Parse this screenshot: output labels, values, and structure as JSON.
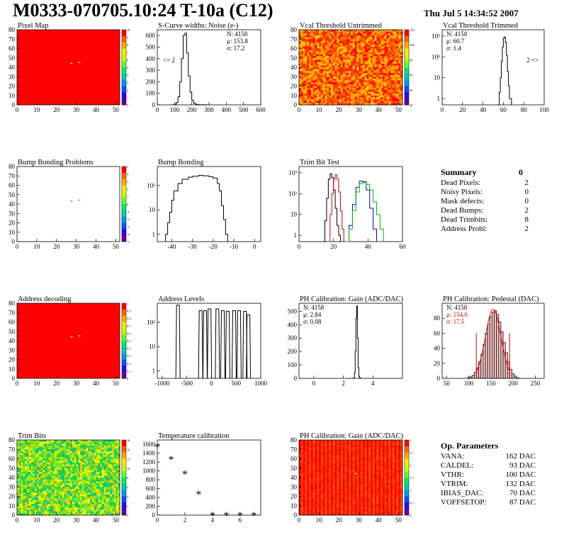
{
  "header": {
    "title": "M0333-070705.10:24 T-10a (C12)",
    "date": "Thu Jul  5 14:34:52 2007"
  },
  "panels": {
    "pixel_map": {
      "title": "Pixel Map",
      "chart_data": {
        "type": "heatmap",
        "xlim": [
          0,
          52
        ],
        "ylim": [
          0,
          80
        ],
        "x_ticks": [
          0,
          10,
          20,
          30,
          40,
          50
        ],
        "y_ticks": [
          0,
          10,
          20,
          30,
          40,
          50,
          60,
          70,
          80
        ],
        "fill": "uniform",
        "fill_value": 10,
        "z_ticks": [
          0,
          1,
          2,
          3,
          4,
          5,
          6,
          7,
          8,
          9,
          10
        ]
      }
    },
    "scurve": {
      "title": "S-Curve widths: Noise (e-)",
      "stats": {
        "n": "N: 4158",
        "mean": "μ: 153.8",
        "sigma": "σ: 17.2"
      },
      "underflow_label": "<= 2",
      "chart_data": {
        "type": "line",
        "xlim": [
          0,
          600
        ],
        "ylim": [
          0,
          650
        ],
        "x_ticks": [
          0,
          100,
          200,
          300,
          400,
          500,
          600
        ],
        "y_ticks": [
          0,
          100,
          200,
          300,
          400,
          500,
          600
        ],
        "x": [
          80,
          100,
          110,
          120,
          130,
          140,
          150,
          160,
          170,
          180,
          190,
          200,
          210,
          220,
          230,
          240,
          260,
          280,
          300
        ],
        "y": [
          0,
          5,
          20,
          70,
          200,
          400,
          600,
          620,
          450,
          250,
          110,
          40,
          15,
          6,
          2,
          1,
          1,
          0,
          0
        ]
      }
    },
    "vcal_untrimmed": {
      "title": "Vcal Threshold Untrimmed",
      "chart_data": {
        "type": "heatmap",
        "xlim": [
          0,
          52
        ],
        "ylim": [
          0,
          80
        ],
        "x_ticks": [
          0,
          10,
          20,
          30,
          40,
          50
        ],
        "y_ticks": [
          0,
          10,
          20,
          30,
          40,
          50,
          60,
          70,
          80
        ],
        "fill": "random-orange",
        "z_ticks": [
          20,
          40,
          60,
          80,
          100,
          120
        ]
      }
    },
    "vcal_trimmed": {
      "title": "Vcal Threshold Trimmed",
      "stats": {
        "n": "N: 4158",
        "mean": "μ: 60.7",
        "sigma": "σ: 1.4"
      },
      "overflow_label": "2 =>",
      "chart_data": {
        "type": "line",
        "log_y": true,
        "xlim": [
          0,
          100
        ],
        "ylim": [
          0.5,
          2000
        ],
        "x_ticks": [
          0,
          20,
          40,
          60,
          80,
          100
        ],
        "y_tick_labels": [
          "1",
          "10",
          "10²",
          "10³"
        ],
        "x": [
          54,
          56,
          57,
          58,
          59,
          60,
          61,
          62,
          63,
          64,
          65,
          66,
          68
        ],
        "y": [
          0.5,
          2,
          10,
          60,
          300,
          800,
          900,
          500,
          120,
          20,
          4,
          1,
          0.5
        ]
      }
    },
    "bump_problems": {
      "title": "Bump Bonding Problems",
      "chart_data": {
        "type": "heatmap",
        "xlim": [
          0,
          52
        ],
        "ylim": [
          0,
          80
        ],
        "x_ticks": [
          0,
          10,
          20,
          30,
          40,
          50
        ],
        "y_ticks": [
          0,
          10,
          20,
          30,
          40,
          50,
          60,
          70,
          80
        ],
        "fill": "empty",
        "z_ticks": [
          -5,
          -4,
          -3,
          -2,
          -1,
          0,
          1,
          2,
          3,
          4,
          5
        ]
      }
    },
    "bump_bonding": {
      "title": "Bump Bonding",
      "chart_data": {
        "type": "line",
        "log_y": true,
        "xlim": [
          -47,
          3
        ],
        "ylim": [
          0.5,
          600
        ],
        "x_ticks": [
          -40,
          -30,
          -20,
          -10,
          0
        ],
        "y_tick_labels": [
          "1",
          "10",
          "10²"
        ],
        "x": [
          -43,
          -42,
          -41,
          -40,
          -39,
          -37,
          -35,
          -32,
          -30,
          -27,
          -25,
          -22,
          -20,
          -18,
          -17,
          -16,
          -15,
          -14,
          -13
        ],
        "y": [
          1,
          3,
          8,
          25,
          60,
          120,
          180,
          220,
          240,
          260,
          250,
          230,
          200,
          120,
          60,
          15,
          4,
          1,
          0.5
        ]
      }
    },
    "trim_bit_test": {
      "title": "Trim Bit Test",
      "chart_data": {
        "type": "line",
        "log_y": true,
        "xlim": [
          0,
          60
        ],
        "ylim": [
          0.5,
          2000
        ],
        "x_ticks": [
          0,
          20,
          40,
          60
        ],
        "y_tick_labels": [
          "1",
          "10",
          "10²",
          "10³"
        ],
        "series": [
          {
            "color": "#000000",
            "x": [
              14,
              15,
              16,
              17,
              18,
              19,
              20,
              21,
              22,
              23,
              24
            ],
            "y": [
              0.5,
              5,
              60,
              500,
              900,
              600,
              150,
              20,
              3,
              1,
              0.5
            ]
          },
          {
            "color": "#cc0000",
            "x": [
              17,
              18,
              19,
              20,
              21,
              22,
              23,
              24,
              25,
              26
            ],
            "y": [
              0.5,
              10,
              100,
              500,
              800,
              500,
              120,
              15,
              2,
              0.5
            ]
          },
          {
            "color": "#0000cc",
            "x": [
              27,
              29,
              31,
              33,
              35,
              37,
              39,
              41,
              43,
              45
            ],
            "y": [
              0.5,
              3,
              30,
              200,
              400,
              380,
              150,
              20,
              2,
              0.5
            ]
          },
          {
            "color": "#00bb00",
            "x": [
              27,
              29,
              31,
              33,
              35,
              37,
              39,
              41,
              43,
              45,
              47,
              49
            ],
            "y": [
              0.5,
              2,
              15,
              120,
              300,
              350,
              280,
              150,
              40,
              10,
              2,
              0.5
            ]
          }
        ]
      }
    },
    "address_decoding": {
      "title": "Address decoding",
      "chart_data": {
        "type": "heatmap",
        "xlim": [
          0,
          52
        ],
        "ylim": [
          0,
          80
        ],
        "x_ticks": [
          0,
          10,
          20,
          30,
          40,
          50
        ],
        "y_ticks": [
          0,
          10,
          20,
          30,
          40,
          50,
          60,
          70,
          80
        ],
        "fill": "uniform",
        "fill_value": 1,
        "z_ticks": [
          0,
          0.1,
          0.2,
          0.3,
          0.4,
          0.5,
          0.6,
          0.7,
          0.8,
          0.9,
          1
        ]
      }
    },
    "address_levels": {
      "title": "Address Levels",
      "chart_data": {
        "type": "line",
        "log_y": true,
        "xlim": [
          -1100,
          1000
        ],
        "ylim": [
          0.5,
          600
        ],
        "x_ticks": [
          -1000,
          -500,
          0,
          500,
          1000
        ],
        "y_tick_labels": [
          "1",
          "10",
          "10²"
        ],
        "peaks": [
          -680,
          -220,
          -130,
          -40,
          120,
          230,
          330,
          460,
          560,
          680,
          750
        ],
        "peak_heights": [
          500,
          300,
          300,
          350,
          350,
          300,
          280,
          300,
          300,
          280,
          200
        ]
      }
    },
    "ph_gain": {
      "title": "PH Calibration: Gain (ADC/DAC)",
      "stats": {
        "n": "N: 4158",
        "mean": "μ: 2.84",
        "sigma": "σ: 0.08"
      },
      "chart_data": {
        "type": "line",
        "xlim": [
          -1,
          6
        ],
        "ylim": [
          0,
          560
        ],
        "x_ticks": [
          0,
          2,
          4
        ],
        "y_ticks": [
          0,
          100,
          200,
          300,
          400,
          500
        ],
        "x": [
          2.6,
          2.7,
          2.75,
          2.8,
          2.85,
          2.9,
          2.95,
          3.0,
          3.05,
          3.1,
          3.2
        ],
        "y": [
          0,
          5,
          40,
          200,
          450,
          540,
          300,
          80,
          15,
          3,
          0
        ]
      }
    },
    "ph_pedestal": {
      "title": "PH Calibration: Pedestal (DAC)",
      "stats": {
        "n": "N: 4158",
        "mean": "μ: 154.6",
        "sigma": "σ: 17.5"
      },
      "mean_color": "#dd0000",
      "chart_data": {
        "type": "bar",
        "xlim": [
          40,
          270
        ],
        "ylim": [
          0,
          100
        ],
        "x_ticks": [
          50,
          100,
          150,
          200,
          250
        ],
        "y_ticks": [
          0,
          20,
          40,
          60,
          80
        ],
        "fit_range": [
          117,
          192
        ],
        "x": [
          100,
          105,
          110,
          115,
          120,
          125,
          130,
          135,
          140,
          145,
          150,
          155,
          160,
          165,
          170,
          175,
          180,
          185,
          190,
          195,
          200,
          205,
          210
        ],
        "y": [
          1,
          2,
          4,
          8,
          14,
          22,
          32,
          45,
          60,
          72,
          82,
          88,
          90,
          85,
          75,
          62,
          48,
          34,
          22,
          12,
          6,
          3,
          1
        ]
      }
    },
    "trim_bits": {
      "title": "Trim Bits",
      "chart_data": {
        "type": "heatmap",
        "xlim": [
          0,
          52
        ],
        "ylim": [
          0,
          80
        ],
        "x_ticks": [
          0,
          10,
          20,
          30,
          40,
          50
        ],
        "y_ticks": [
          0,
          10,
          20,
          30,
          40,
          50,
          60,
          70,
          80
        ],
        "fill": "random-green",
        "z_ticks": [
          0,
          2,
          4,
          6,
          8,
          10,
          12,
          14,
          16
        ]
      }
    },
    "temperature_calibration": {
      "title": "Temperature calibration",
      "chart_data": {
        "type": "scatter",
        "xlim": [
          0,
          7.5
        ],
        "ylim": [
          0,
          1700
        ],
        "x_ticks": [
          0,
          2,
          4,
          6
        ],
        "y_ticks": [
          0,
          200,
          400,
          600,
          800,
          1000,
          1200,
          1400,
          1600
        ],
        "marker": "*",
        "x": [
          0,
          1,
          2,
          3,
          4,
          5,
          6,
          7
        ],
        "y": [
          1550,
          1270,
          940,
          480,
          0,
          0,
          0,
          0
        ]
      }
    },
    "ph_gain_map": {
      "title": "PH Calibration: Gain (ADC/DAC)",
      "chart_data": {
        "type": "heatmap",
        "xlim": [
          0,
          52
        ],
        "ylim": [
          0,
          80
        ],
        "x_ticks": [
          0,
          10,
          20,
          30,
          40,
          50
        ],
        "y_ticks": [
          0,
          10,
          20,
          30,
          40,
          50,
          60,
          70,
          80
        ],
        "fill": "column-stripes",
        "z_ticks": [
          0,
          0.5,
          1,
          1.5,
          2,
          2.5,
          3
        ]
      }
    }
  },
  "summary": {
    "title": "Summary",
    "value": "0",
    "rows": [
      {
        "label": "Dead Pixels:",
        "value": "2"
      },
      {
        "label": "Noisy Pixels:",
        "value": "0"
      },
      {
        "label": "Mask defects:",
        "value": "0"
      },
      {
        "label": "Dead Bumps:",
        "value": "2"
      },
      {
        "label": "Dead Trimbits:",
        "value": "8"
      },
      {
        "label": "Address Probl:",
        "value": "2"
      }
    ]
  },
  "op_params": {
    "title": "Op. Parameters",
    "rows": [
      {
        "label": "VANA:",
        "value": "162 DAC"
      },
      {
        "label": "CALDEL:",
        "value": "93 DAC"
      },
      {
        "label": "VTHR:",
        "value": "100 DAC"
      },
      {
        "label": "VTRIM:",
        "value": "132 DAC"
      },
      {
        "label": "IBIAS_DAC:",
        "value": "70 DAC"
      },
      {
        "label": "VOFFSETOP:",
        "value": "87 DAC"
      }
    ]
  }
}
